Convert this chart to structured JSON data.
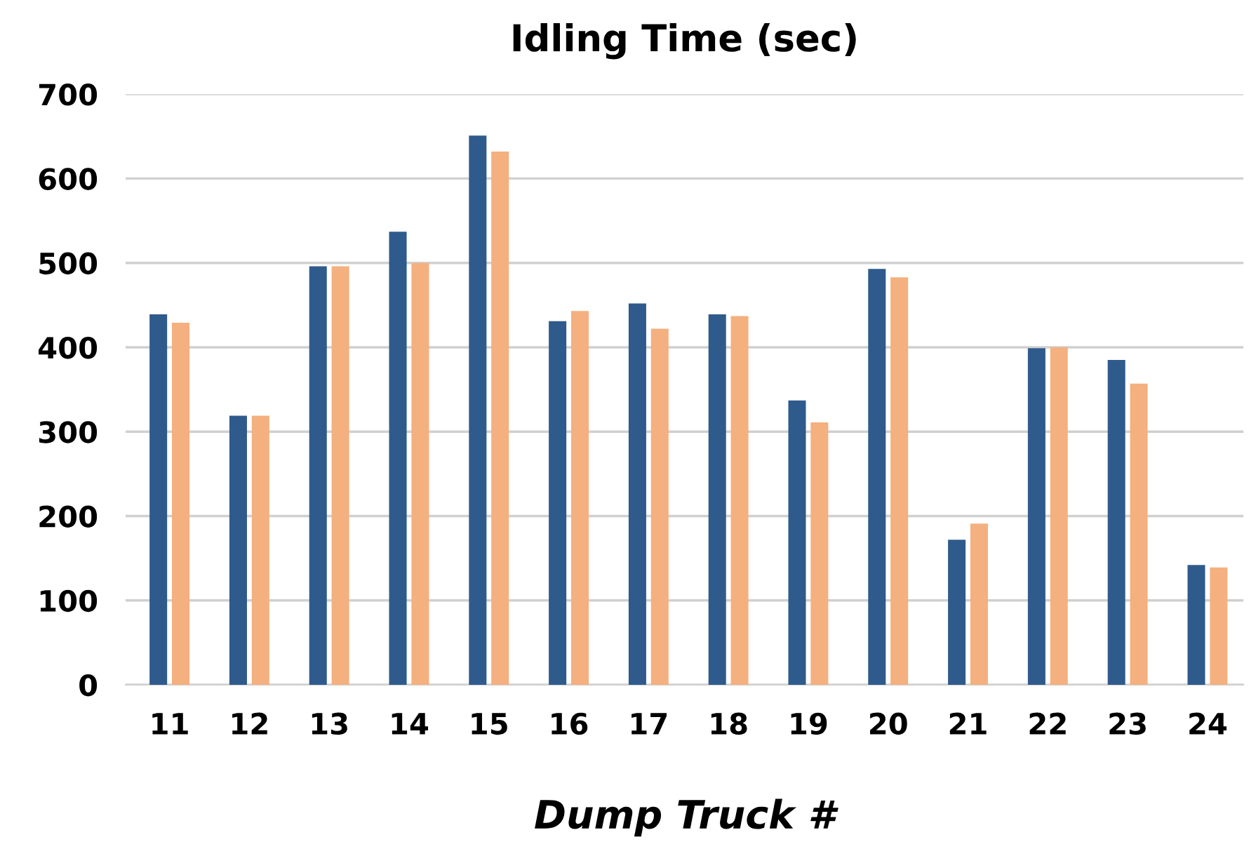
{
  "chart_data": {
    "type": "bar",
    "title": "Idling Time (sec)",
    "xlabel": "Dump Truck #",
    "categories": [
      "11",
      "12",
      "13",
      "14",
      "15",
      "16",
      "17",
      "18",
      "19",
      "20",
      "21",
      "22",
      "23",
      "24"
    ],
    "series": [
      {
        "color": "#2f5a8c",
        "values": [
          439,
          319,
          496,
          537,
          651,
          431,
          452,
          439,
          337,
          493,
          172,
          399,
          385,
          142
        ]
      },
      {
        "color": "#f4b07f",
        "values": [
          429,
          319,
          496,
          500,
          632,
          443,
          422,
          437,
          311,
          483,
          191,
          400,
          357,
          139
        ]
      }
    ],
    "ylim": [
      0,
      700
    ],
    "yticks": [
      0,
      100,
      200,
      300,
      400,
      500,
      600,
      700
    ],
    "grid": "y",
    "legend": false
  }
}
